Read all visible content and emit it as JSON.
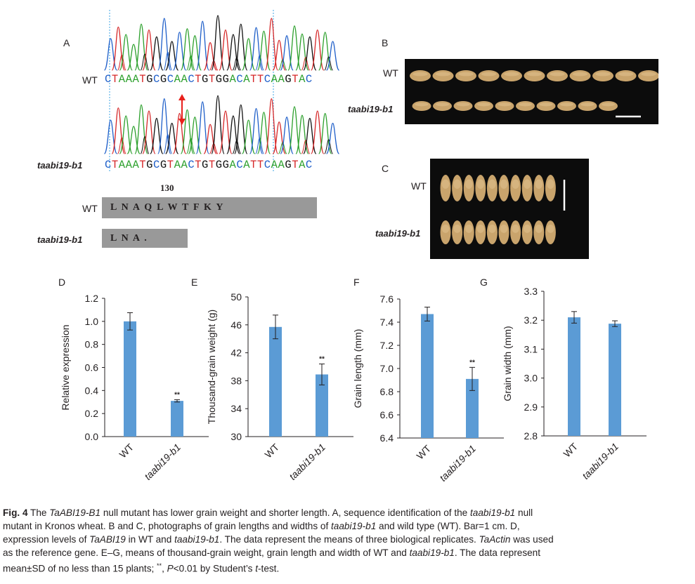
{
  "panel_a": {
    "letter": "A",
    "wt_label": "WT",
    "mut_label": "taabi19-b1",
    "wt_sequence": "CTAAATGCGCAACTGTGGACATTCAAGTAC",
    "mut_sequence": "CTAAATGCGTAACTGTGGACATTCAAGTAC",
    "position_label": "130",
    "wt_protein": "L  N  A  Q  L  W  T  F  K  Y",
    "mut_protein": "L  N  A  ."
  },
  "panel_b": {
    "letter": "B",
    "wt_label": "WT",
    "mut_label": "taabi19-b1"
  },
  "panel_c": {
    "letter": "C",
    "wt_label": "WT",
    "mut_label": "taabi19-b1"
  },
  "colors": {
    "bar": "#5b9bd5",
    "trace_a": "#2ca02c",
    "trace_c": "#1f5fc9",
    "trace_g": "#111111",
    "trace_t": "#d62728",
    "arrow": "#e8201b",
    "photo_bg": "#0c0c0c",
    "grain": "#c9a46c"
  },
  "chart_data": [
    {
      "panel": "D",
      "type": "bar",
      "categories": [
        "WT",
        "taabi19-b1"
      ],
      "values": [
        1.0,
        0.31
      ],
      "errors": [
        0.075,
        0.01
      ],
      "significance": [
        "",
        "**"
      ],
      "xlabel": "",
      "ylabel": "Relative expression",
      "ylim": [
        0.0,
        1.2
      ],
      "yticks": [
        "0.0",
        "0.2",
        "0.4",
        "0.6",
        "0.8",
        "1.0",
        "1.2"
      ]
    },
    {
      "panel": "E",
      "type": "bar",
      "categories": [
        "WT",
        "taabi19-b1"
      ],
      "values": [
        45.7,
        38.9
      ],
      "errors": [
        1.7,
        1.5
      ],
      "significance": [
        "",
        "**"
      ],
      "xlabel": "",
      "ylabel": "Thousand-grain weight (g)",
      "ylim": [
        30,
        50
      ],
      "yticks": [
        "30",
        "34",
        "38",
        "42",
        "46",
        "50"
      ]
    },
    {
      "panel": "F",
      "type": "bar",
      "categories": [
        "WT",
        "taabi19-b1"
      ],
      "values": [
        7.47,
        6.91
      ],
      "errors": [
        0.06,
        0.1
      ],
      "significance": [
        "",
        "**"
      ],
      "xlabel": "",
      "ylabel": "Grain length (mm)",
      "ylim": [
        6.4,
        7.6
      ],
      "yticks": [
        "6.4",
        "6.6",
        "6.8",
        "7.0",
        "7.2",
        "7.4",
        "7.6"
      ]
    },
    {
      "panel": "G",
      "type": "bar",
      "categories": [
        "WT",
        "taabi19-b1"
      ],
      "values": [
        3.21,
        3.188
      ],
      "errors": [
        0.02,
        0.01
      ],
      "significance": [
        "",
        ""
      ],
      "xlabel": "",
      "ylabel": "Grain width (mm)",
      "ylim": [
        2.8,
        3.3
      ],
      "yticks": [
        "2.8",
        "2.9",
        "3.0",
        "3.1",
        "3.2",
        "3.3"
      ]
    }
  ],
  "caption": {
    "fig": "Fig. 4",
    "lines": [
      [
        [
          "",
          "  The "
        ],
        [
          "i",
          "TaABI19-B1"
        ],
        [
          "",
          " null mutant has lower grain weight and shorter length.  A, sequence identification of the "
        ],
        [
          "i",
          "taabi19-b1"
        ],
        [
          "",
          " null"
        ]
      ],
      [
        [
          "",
          "mutant in Kronos wheat.  B and C, photographs of grain lengths and widths of "
        ],
        [
          "i",
          "taabi19-b1"
        ],
        [
          "",
          " and wild type (WT).  Bar=1 cm.  D,"
        ]
      ],
      [
        [
          "",
          "expression levels of "
        ],
        [
          "i",
          "TaABI19"
        ],
        [
          "",
          " in WT and "
        ],
        [
          "i",
          "taabi19-b1"
        ],
        [
          "",
          ".  The data represent the means of three biological replicates.  "
        ],
        [
          "i",
          "TaActin"
        ],
        [
          "",
          " was used"
        ]
      ],
      [
        [
          "",
          "as the reference gene.  E–G, means of thousand-grain weight, grain length and width of WT and "
        ],
        [
          "i",
          "taabi19-b1"
        ],
        [
          "",
          ".  The data represent"
        ]
      ],
      [
        [
          "",
          "mean±SD of no less than 15 plants; "
        ],
        [
          "sup",
          "**"
        ],
        [
          "",
          ", "
        ],
        [
          "i",
          "P"
        ],
        [
          "",
          "<0.01 by Student’s "
        ],
        [
          "i",
          "t"
        ],
        [
          "",
          "-test."
        ]
      ]
    ]
  }
}
